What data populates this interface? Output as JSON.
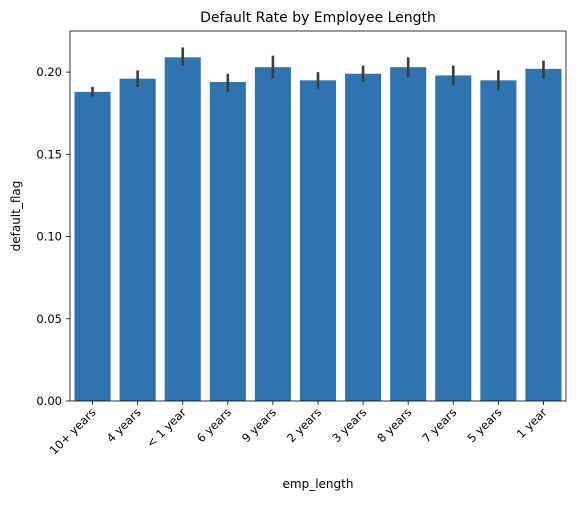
{
  "chart_data": {
    "type": "bar",
    "title": "Default Rate by Employee Length",
    "xlabel": "emp_length",
    "ylabel": "default_flag",
    "categories": [
      "10+ years",
      "4 years",
      "< 1 year",
      "6 years",
      "9 years",
      "2 years",
      "3 years",
      "8 years",
      "7 years",
      "5 years",
      "1 year"
    ],
    "values": [
      0.188,
      0.196,
      0.209,
      0.194,
      0.203,
      0.195,
      0.199,
      0.203,
      0.198,
      0.195,
      0.202
    ],
    "error_low": [
      0.185,
      0.191,
      0.204,
      0.188,
      0.196,
      0.19,
      0.194,
      0.197,
      0.192,
      0.189,
      0.196
    ],
    "error_high": [
      0.191,
      0.201,
      0.215,
      0.199,
      0.21,
      0.2,
      0.204,
      0.209,
      0.204,
      0.201,
      0.207
    ],
    "ylim": [
      0,
      0.225
    ],
    "yticks": [
      0.0,
      0.05,
      0.1,
      0.15,
      0.2
    ],
    "ytick_labels": [
      "0.00",
      "0.05",
      "0.10",
      "0.15",
      "0.20"
    ],
    "bar_color": "#2e75b0",
    "errorbar_color": "#3c3c3c",
    "grid": false,
    "legend": "none"
  }
}
